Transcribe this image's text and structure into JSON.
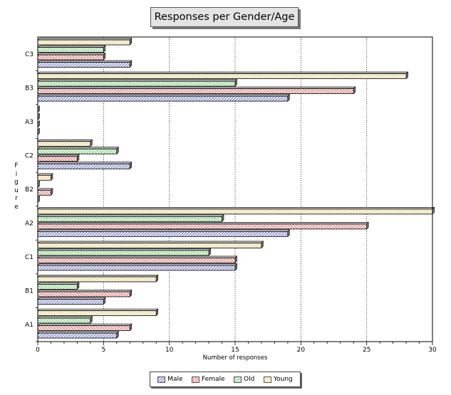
{
  "chart_data": {
    "type": "bar",
    "orientation": "horizontal",
    "title": "Responses per Gender/Age",
    "xlabel": "Number of responses",
    "ylabel": "Figure",
    "xlim": [
      0,
      30
    ],
    "xticks": [
      0,
      5,
      10,
      15,
      20,
      25,
      30
    ],
    "grid": "vertical dashed at major ticks",
    "legend_position": "bottom-center",
    "categories": [
      "A1",
      "B1",
      "C1",
      "A2",
      "B2",
      "C2",
      "A3",
      "B3",
      "C3"
    ],
    "series": [
      {
        "name": "Male",
        "color": "#7a84cc",
        "values": [
          6,
          5,
          15,
          19,
          0,
          7,
          0,
          19,
          7
        ]
      },
      {
        "name": "Female",
        "color": "#e07878",
        "values": [
          7,
          7,
          15,
          25,
          1,
          3,
          0,
          24,
          5
        ]
      },
      {
        "name": "Old",
        "color": "#7fcf7f",
        "values": [
          4,
          3,
          13,
          14,
          0,
          6,
          0,
          15,
          5
        ]
      },
      {
        "name": "Young",
        "color": "#e6d48c",
        "values": [
          9,
          9,
          17,
          30,
          1,
          4,
          0,
          28,
          7
        ]
      }
    ]
  }
}
